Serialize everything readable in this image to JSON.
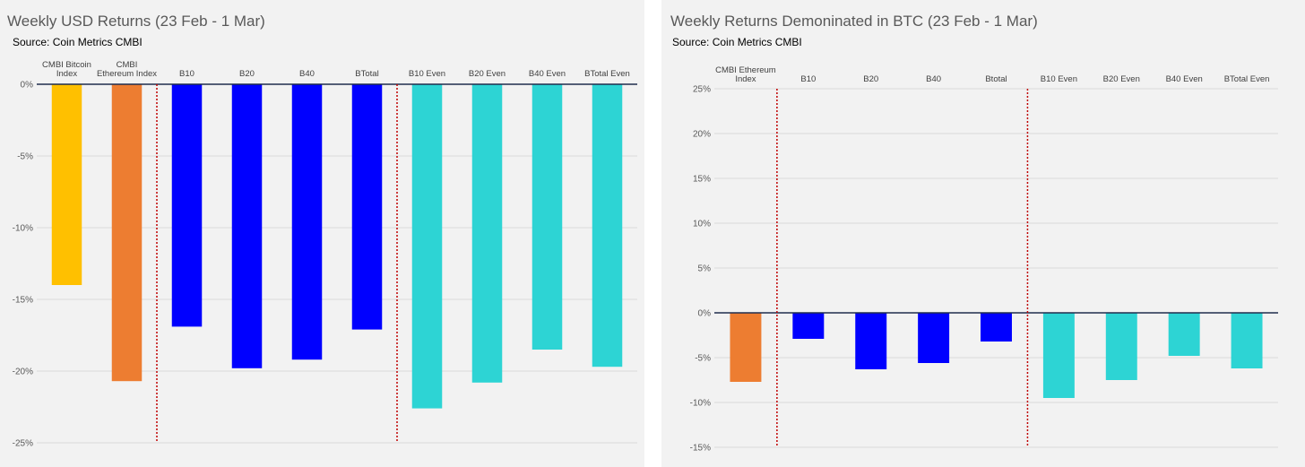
{
  "chart_data": [
    {
      "type": "bar",
      "title": "Weekly USD Returns (23 Feb - 1 Mar)",
      "subtitle": "Source: Coin Metrics CMBI",
      "categories": [
        [
          "CMBI Bitcoin",
          "Index"
        ],
        [
          "CMBI",
          "Ethereum Index"
        ],
        [
          "B10"
        ],
        [
          "B20"
        ],
        [
          "B40"
        ],
        [
          "BTotal"
        ],
        [
          "B10 Even"
        ],
        [
          "B20 Even"
        ],
        [
          "B40 Even"
        ],
        [
          "BTotal Even"
        ]
      ],
      "values": [
        -14.0,
        -20.7,
        -16.9,
        -19.8,
        -19.2,
        -17.1,
        -22.6,
        -20.8,
        -18.5,
        -19.7
      ],
      "colors": [
        "#ffc000",
        "#ed7d31",
        "#0000ff",
        "#0000ff",
        "#0000ff",
        "#0000ff",
        "#2dd4d4",
        "#2dd4d4",
        "#2dd4d4",
        "#2dd4d4"
      ],
      "yticks": [
        0,
        -5,
        -10,
        -15,
        -20,
        -25
      ],
      "tick_labels": [
        "0%",
        "-5%",
        "-10%",
        "-15%",
        "-20%",
        "-25%"
      ],
      "ylim": [
        -25,
        0
      ],
      "separators_after": [
        2,
        6
      ],
      "grid": true
    },
    {
      "type": "bar",
      "title": "Weekly Returns Demoninated in BTC (23 Feb - 1 Mar)",
      "subtitle": "Source: Coin Metrics CMBI",
      "categories": [
        [
          "CMBI Ethereum",
          "Index"
        ],
        [
          "B10"
        ],
        [
          "B20"
        ],
        [
          "B40"
        ],
        [
          "Btotal"
        ],
        [
          "B10 Even"
        ],
        [
          "B20 Even"
        ],
        [
          "B40 Even"
        ],
        [
          "BTotal Even"
        ]
      ],
      "values": [
        -7.7,
        -2.9,
        -6.3,
        -5.6,
        -3.2,
        -9.5,
        -7.5,
        -4.8,
        -6.2
      ],
      "colors": [
        "#ed7d31",
        "#0000ff",
        "#0000ff",
        "#0000ff",
        "#0000ff",
        "#2dd4d4",
        "#2dd4d4",
        "#2dd4d4",
        "#2dd4d4"
      ],
      "yticks": [
        25,
        20,
        15,
        10,
        5,
        0,
        -5,
        -10,
        -15
      ],
      "tick_labels": [
        "25%",
        "20%",
        "15%",
        "10%",
        "5%",
        "0%",
        "-5%",
        "-10%",
        "-15%"
      ],
      "ylim": [
        -15,
        25
      ],
      "separators_after": [
        1,
        5
      ],
      "grid": true
    }
  ]
}
